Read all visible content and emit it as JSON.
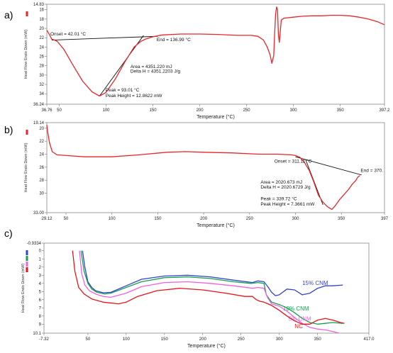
{
  "chart_data": [
    {
      "type": "line",
      "panel_label": "a)",
      "xlabel": "Temperature (°C)",
      "ylabel": "Heat Flow Endo Down (mW)",
      "xlim": [
        36.76,
        397.2
      ],
      "ylim": [
        14.83,
        36.24
      ],
      "y_inverted": true,
      "x_ticks": [
        {
          "v": 36.76,
          "label": "36.76"
        },
        {
          "v": 50,
          "label": "50"
        },
        {
          "v": 100,
          "label": "100"
        },
        {
          "v": 150,
          "label": "150"
        },
        {
          "v": 200,
          "label": "200"
        },
        {
          "v": 250,
          "label": "250"
        },
        {
          "v": 300,
          "label": "300"
        },
        {
          "v": 350,
          "label": "350"
        },
        {
          "v": 397.2,
          "label": "397.2"
        }
      ],
      "y_ticks": [
        {
          "v": 14.83,
          "label": "14.83"
        },
        {
          "v": 16,
          "label": "16"
        },
        {
          "v": 18,
          "label": "18"
        },
        {
          "v": 20,
          "label": "20"
        },
        {
          "v": 22,
          "label": "22"
        },
        {
          "v": 24,
          "label": "24"
        },
        {
          "v": 26,
          "label": "26"
        },
        {
          "v": 28,
          "label": "28"
        },
        {
          "v": 30,
          "label": "30"
        },
        {
          "v": 32,
          "label": "32"
        },
        {
          "v": 34,
          "label": "34"
        },
        {
          "v": 36.24,
          "label": "36.24"
        }
      ],
      "series": [
        {
          "color": "#e8262a",
          "x": [
            36.76,
            40,
            42,
            45,
            48,
            55,
            65,
            75,
            85,
            93,
            100,
            110,
            120,
            130,
            137,
            142,
            150,
            160,
            180,
            200,
            220,
            240,
            255,
            262,
            268,
            272,
            275,
            277,
            279,
            280,
            281,
            282,
            283,
            284,
            285,
            287,
            290,
            300,
            310,
            320,
            330,
            340,
            350,
            360,
            370,
            380,
            390,
            397
          ],
          "y": [
            20.4,
            21.5,
            22.3,
            22.5,
            22.8,
            24.5,
            28,
            31.3,
            33.6,
            34.5,
            33.7,
            30.8,
            27.2,
            24,
            22.8,
            22.3,
            21.8,
            21.4,
            21.2,
            21.2,
            21.3,
            21.5,
            21.5,
            21.7,
            22.5,
            24,
            25.6,
            27.5,
            25.8,
            21,
            17,
            15.4,
            16,
            21.5,
            23,
            18.2,
            17.8,
            17.6,
            17.4,
            17.3,
            17.3,
            17.2,
            17.2,
            17.3,
            17.6,
            18,
            18.6,
            19.2
          ]
        }
      ],
      "annotations": [
        {
          "text": "Onset = 42.01 °C",
          "x": 40.5,
          "y": 21.5
        },
        {
          "text": "End = 136.99 °C",
          "x": 154,
          "y": 22.7
        },
        {
          "text": "Area = 4351.220 mJ",
          "x": 126,
          "y": 28.5
        },
        {
          "text": "Delta H = 4351.2203 J/g",
          "x": 126,
          "y": 29.5
        },
        {
          "text": "Peak = 93.01 °C",
          "x": 99.5,
          "y": 33.5
        },
        {
          "text": "Peak Height = 12.8622 mW",
          "x": 99.5,
          "y": 34.7
        }
      ],
      "baseline": {
        "x": [
          42,
          155
        ],
        "y": [
          22.5,
          21.7
        ]
      },
      "tangent": {
        "x": [
          93,
          140
        ],
        "y": [
          34.5,
          21.5
        ]
      }
    },
    {
      "type": "line",
      "panel_label": "b)",
      "xlabel": "Temperature (°C)",
      "ylabel": "Heat Flow Endo Down (mW)",
      "xlim": [
        29.12,
        397
      ],
      "ylim": [
        19.14,
        33
      ],
      "y_inverted": true,
      "x_ticks": [
        {
          "v": 29.12,
          "label": "29.12"
        },
        {
          "v": 50,
          "label": "50"
        },
        {
          "v": 100,
          "label": "100"
        },
        {
          "v": 150,
          "label": "150"
        },
        {
          "v": 200,
          "label": "200"
        },
        {
          "v": 250,
          "label": "250"
        },
        {
          "v": 300,
          "label": "300"
        },
        {
          "v": 350,
          "label": "350"
        },
        {
          "v": 397,
          "label": "397"
        }
      ],
      "y_ticks": [
        {
          "v": 19.14,
          "label": "19.14"
        },
        {
          "v": 20,
          "label": "20"
        },
        {
          "v": 22,
          "label": "22"
        },
        {
          "v": 24,
          "label": "24"
        },
        {
          "v": 26,
          "label": "26"
        },
        {
          "v": 28,
          "label": "28"
        },
        {
          "v": 30,
          "label": "30"
        },
        {
          "v": 33,
          "label": "33.00"
        }
      ],
      "series": [
        {
          "color": "#e8262a",
          "x": [
            29.12,
            30,
            32,
            35,
            40,
            50,
            70,
            100,
            130,
            160,
            180,
            200,
            230,
            260,
            280,
            295,
            300,
            305,
            310,
            315,
            320,
            325,
            330,
            335,
            339.72,
            343,
            348,
            353,
            358,
            362,
            366,
            368,
            370
          ],
          "y": [
            19.5,
            20.5,
            22.2,
            23.6,
            24.1,
            24.2,
            24.4,
            24.4,
            24.1,
            23.7,
            23.6,
            23.7,
            23.8,
            24,
            24,
            24.1,
            24.2,
            24.5,
            25.3,
            26.5,
            28.3,
            30.3,
            31.4,
            32.1,
            32.5,
            32,
            31,
            30.2,
            29.4,
            28.6,
            28,
            27.5,
            27.3
          ]
        }
      ],
      "annotations": [
        {
          "text": "Onset = 311.11 °C",
          "x": 277,
          "y": 25.3
        },
        {
          "text": "End = 370.",
          "x": 371,
          "y": 26.7
        },
        {
          "text": "Area = 2020.673 mJ",
          "x": 262,
          "y": 28.5
        },
        {
          "text": "Delta H = 2020.6729 J/g",
          "x": 262,
          "y": 29.3
        },
        {
          "text": "Peak = 339.72 °C",
          "x": 262,
          "y": 31.1
        },
        {
          "text": "Peak Height = 7.3661 mW",
          "x": 262,
          "y": 31.9
        }
      ],
      "baseline": {
        "x": [
          300,
          372
        ],
        "y": [
          24.4,
          27.2
        ]
      },
      "tangent": {
        "x": [
          311,
          330
        ],
        "y": [
          24.8,
          31.8
        ]
      }
    },
    {
      "type": "line",
      "panel_label": "c)",
      "xlabel": "Temperature (°C)",
      "ylabel": "Heat Flow Endo Down (mW)",
      "xlim": [
        -7.32,
        417
      ],
      "ylim": [
        -0.9334,
        10.1
      ],
      "y_inverted": true,
      "x_ticks": [
        {
          "v": -7.32,
          "label": "-7.32"
        },
        {
          "v": 50,
          "label": "50"
        },
        {
          "v": 100,
          "label": "100"
        },
        {
          "v": 150,
          "label": "150"
        },
        {
          "v": 200,
          "label": "200"
        },
        {
          "v": 250,
          "label": "250"
        },
        {
          "v": 300,
          "label": "300"
        },
        {
          "v": 350,
          "label": "350"
        },
        {
          "v": 417,
          "label": "417.0"
        }
      ],
      "y_ticks": [
        {
          "v": -0.9334,
          "label": "-0.9334"
        },
        {
          "v": 0,
          "label": "0"
        },
        {
          "v": 1,
          "label": "1"
        },
        {
          "v": 2,
          "label": "2"
        },
        {
          "v": 3,
          "label": "3"
        },
        {
          "v": 4,
          "label": "4"
        },
        {
          "v": 5,
          "label": "5"
        },
        {
          "v": 6,
          "label": "6"
        },
        {
          "v": 7,
          "label": "7"
        },
        {
          "v": 8,
          "label": "8"
        },
        {
          "v": 9,
          "label": "9"
        },
        {
          "v": 10.1,
          "label": "10.1"
        }
      ],
      "series": [
        {
          "name": "15% CNM",
          "color": "#3344cc",
          "label_at": {
            "x": 330,
            "y": 4.2
          },
          "x": [
            43,
            46,
            50,
            55,
            60,
            70,
            80,
            100,
            120,
            150,
            180,
            210,
            240,
            265,
            272,
            280,
            285,
            290,
            295,
            300,
            310,
            320,
            330,
            340,
            350,
            360,
            370,
            383
          ],
          "y": [
            0,
            2,
            3.8,
            4.5,
            4.9,
            5.15,
            5.1,
            4.3,
            3.5,
            3.1,
            3.0,
            3.2,
            3.6,
            3.9,
            3.7,
            3.8,
            4.4,
            5.1,
            5.5,
            5.4,
            4.7,
            4.8,
            5.4,
            5.2,
            4.6,
            4.3,
            4.3,
            4.2
          ]
        },
        {
          "name": "10% CNM",
          "color": "#16a050",
          "label_at": {
            "x": 305,
            "y": 7.3
          },
          "x": [
            41,
            45,
            50,
            55,
            62,
            72,
            80,
            100,
            120,
            150,
            180,
            210,
            240,
            263,
            272,
            280,
            283,
            290,
            300,
            310,
            320,
            330,
            340,
            350,
            360,
            370,
            383
          ],
          "y": [
            0,
            2.5,
            4,
            4.7,
            5.1,
            5.3,
            5.2,
            4.5,
            3.8,
            3.3,
            3.2,
            3.4,
            3.8,
            4.0,
            3.9,
            4.0,
            5.4,
            6.3,
            6.6,
            7.0,
            7.6,
            8.3,
            8.8,
            9.0,
            8.9,
            8.8,
            8.9
          ]
        },
        {
          "name": "5% CNM",
          "color": "#f060e0",
          "label_at": {
            "x": 312,
            "y": 8.6
          },
          "x": [
            39,
            42,
            46,
            52,
            60,
            70,
            80,
            100,
            120,
            150,
            180,
            210,
            240,
            265,
            272,
            280,
            285,
            290,
            300,
            310,
            320,
            330,
            340,
            350,
            360,
            370,
            378
          ],
          "y": [
            0,
            2.8,
            4.2,
            4.9,
            5.3,
            5.6,
            5.7,
            5.2,
            4.4,
            3.9,
            3.8,
            4.0,
            4.3,
            4.6,
            4.5,
            4.6,
            5.8,
            6.5,
            6.8,
            7.4,
            8.2,
            8.9,
            9.4,
            9.6,
            9.7,
            9.9,
            10.1
          ]
        },
        {
          "name": "NC",
          "color": "#e8131a",
          "label_at": {
            "x": 320,
            "y": 9.5
          },
          "x": [
            30,
            33,
            38,
            45,
            55,
            70,
            90,
            100,
            115,
            140,
            170,
            200,
            230,
            255,
            265,
            270,
            275,
            280,
            290,
            300,
            310,
            320,
            330,
            340,
            350,
            360,
            370,
            380,
            385
          ],
          "y": [
            0,
            2.5,
            4.5,
            5.3,
            5.9,
            6.3,
            6.5,
            6.3,
            5.6,
            4.9,
            4.6,
            4.8,
            5.2,
            5.6,
            5.6,
            6,
            6.2,
            6.3,
            6.7,
            7.3,
            8.0,
            8.6,
            9.0,
            9.0,
            8.5,
            8.3,
            8.5,
            8.8,
            8.9
          ]
        }
      ]
    }
  ]
}
